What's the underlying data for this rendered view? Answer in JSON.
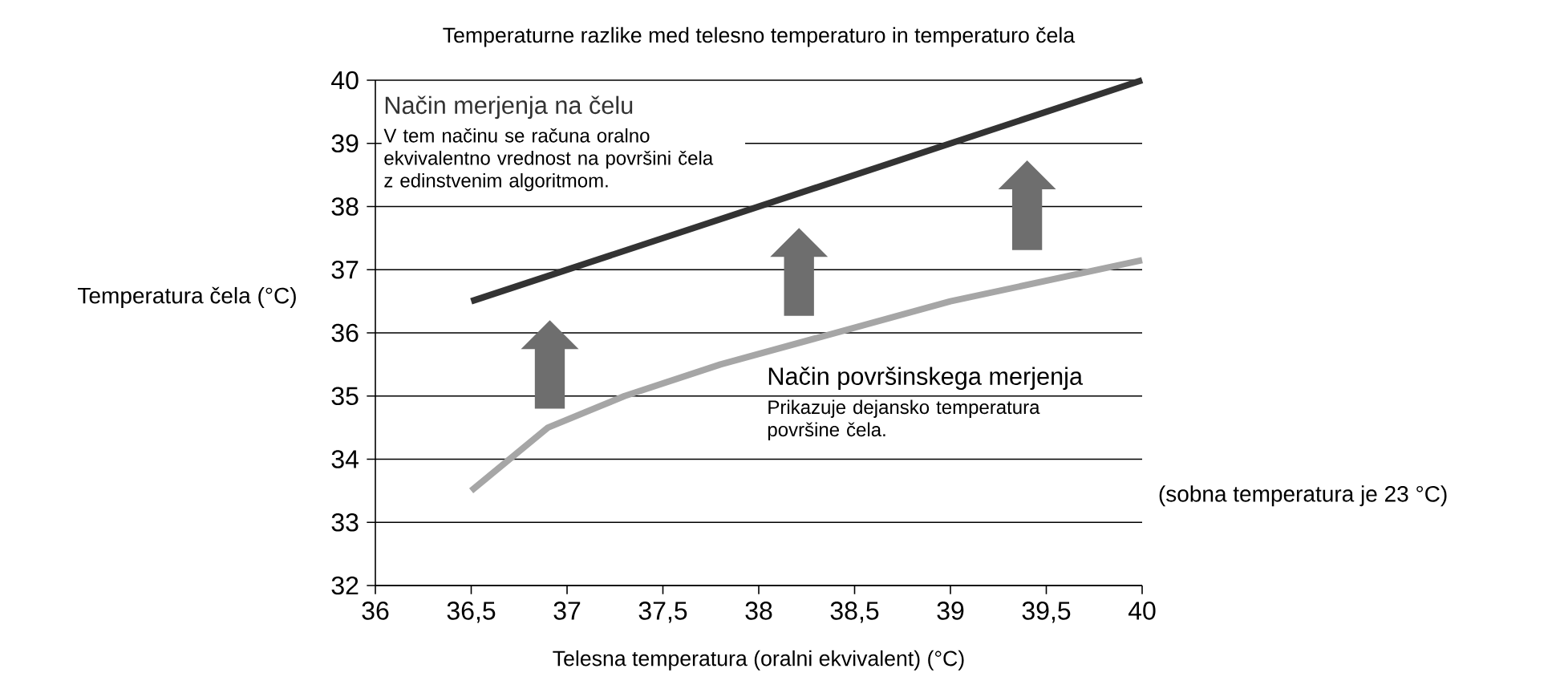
{
  "chart_data": {
    "type": "line",
    "title": "Temperaturne razlike med telesno temperaturo in temperaturo čela",
    "xlabel": "Telesna temperatura (oralni ekvivalent) (°C)",
    "ylabel": "Temperatura čela (°C)",
    "series": [
      {
        "name": "Način merjenja na čelu",
        "color": "#333333",
        "x": [
          36.5,
          40
        ],
        "values": [
          36.5,
          40
        ]
      },
      {
        "name": "Način površinskega merjenja",
        "color": "#a6a6a6",
        "x": [
          36.5,
          36.9,
          37.3,
          37.8,
          39.0,
          40
        ],
        "values": [
          33.5,
          34.5,
          35.0,
          35.5,
          36.5,
          37.15
        ]
      }
    ],
    "annotations": [
      "V tem načinu se računa oralno ekvivalentno vrednost na površini čela z edinstvenim algoritmom.",
      "Prikazuje dejansko temperatura površine čela.",
      "(sobna temperatura je 23 °C)"
    ],
    "xlim": [
      36,
      40
    ],
    "ylim": [
      32,
      40
    ],
    "xticks": [
      36,
      {
        "value": 36.5,
        "label": "36,5"
      },
      37,
      {
        "value": 37.5,
        "label": "37,5"
      },
      38,
      {
        "value": 38.5,
        "label": "38,5"
      },
      39,
      {
        "value": 39.5,
        "label": "39,5"
      },
      40
    ],
    "yticks": [
      32,
      33,
      34,
      35,
      36,
      37,
      38,
      39,
      40
    ],
    "grid": "y",
    "legend": false,
    "marker": "none",
    "line_style": "solid"
  }
}
